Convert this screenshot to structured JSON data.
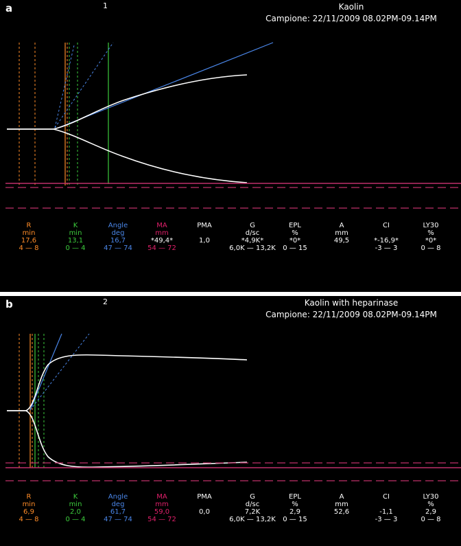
{
  "colors": {
    "R": "#ff8c28",
    "K": "#3ccc3c",
    "Angle": "#4a86e8",
    "MA": "#e0206a",
    "white": "#ffffff",
    "baseline": "#c0306a"
  },
  "panels": [
    {
      "letter": "a",
      "number": "1",
      "title": "Kaolin",
      "sample": "Campione: 22/11/2009 08.02PM-09.14PM",
      "params": [
        {
          "name": "R",
          "unit": "min",
          "value": "17,6",
          "range": "4 — 8",
          "color": "R",
          "value_color": "R"
        },
        {
          "name": "K",
          "unit": "min",
          "value": "13,1",
          "range": "0 — 4",
          "color": "K",
          "value_color": "K"
        },
        {
          "name": "Angle",
          "unit": "deg",
          "value": "16,7",
          "range": "47 — 74",
          "color": "Angle",
          "value_color": "Angle"
        },
        {
          "name": "MA",
          "unit": "mm",
          "value": "*49,4*",
          "range": "54 — 72",
          "color": "MA",
          "value_color": "white"
        },
        {
          "name": "PMA",
          "unit": "",
          "value": "1,0",
          "range": "",
          "color": "white",
          "value_color": "white"
        },
        {
          "name": "G",
          "unit": "d/sc",
          "value": "*4,9K*",
          "range": "6,0K — 13,2K",
          "color": "white",
          "value_color": "white"
        },
        {
          "name": "EPL",
          "unit": "%",
          "value": "*0*",
          "range": "0 — 15",
          "color": "white",
          "value_color": "white"
        },
        {
          "name": "A",
          "unit": "mm",
          "value": "49,5",
          "range": "",
          "color": "white",
          "value_color": "white"
        },
        {
          "name": "CI",
          "unit": "",
          "value": "*-16,9*",
          "range": "-3 — 3",
          "color": "white",
          "value_color": "white"
        },
        {
          "name": "LY30",
          "unit": "%",
          "value": "*0*",
          "range": "0 — 8",
          "color": "white",
          "value_color": "white"
        }
      ]
    },
    {
      "letter": "b",
      "number": "2",
      "title": "Kaolin with heparinase",
      "sample": "Campione: 22/11/2009 08.02PM-09.14PM",
      "params": [
        {
          "name": "R",
          "unit": "min",
          "value": "6,9",
          "range": "4 — 8",
          "color": "R",
          "value_color": "R"
        },
        {
          "name": "K",
          "unit": "min",
          "value": "2,0",
          "range": "0 — 4",
          "color": "K",
          "value_color": "K"
        },
        {
          "name": "Angle",
          "unit": "deg",
          "value": "61,7",
          "range": "47 — 74",
          "color": "Angle",
          "value_color": "Angle"
        },
        {
          "name": "MA",
          "unit": "mm",
          "value": "59,0",
          "range": "54 — 72",
          "color": "MA",
          "value_color": "MA"
        },
        {
          "name": "PMA",
          "unit": "",
          "value": "0,0",
          "range": "",
          "color": "white",
          "value_color": "white"
        },
        {
          "name": "G",
          "unit": "d/sc",
          "value": "7,2K",
          "range": "6,0K — 13,2K",
          "color": "white",
          "value_color": "white"
        },
        {
          "name": "EPL",
          "unit": "%",
          "value": "2,9",
          "range": "0 — 15",
          "color": "white",
          "value_color": "white"
        },
        {
          "name": "A",
          "unit": "mm",
          "value": "52,6",
          "range": "",
          "color": "white",
          "value_color": "white"
        },
        {
          "name": "CI",
          "unit": "",
          "value": "-1,1",
          "range": "-3 — 3",
          "color": "white",
          "value_color": "white"
        },
        {
          "name": "LY30",
          "unit": "%",
          "value": "2,9",
          "range": "0 — 8",
          "color": "white",
          "value_color": "white"
        }
      ]
    }
  ],
  "chart_data": [
    {
      "type": "line",
      "panel": "a",
      "title": "Kaolin",
      "series": [
        {
          "name": "R",
          "values": [
            17.6
          ]
        },
        {
          "name": "K",
          "values": [
            13.1
          ]
        },
        {
          "name": "Angle",
          "values": [
            16.7
          ]
        },
        {
          "name": "MA",
          "values": [
            49.4
          ]
        }
      ]
    },
    {
      "type": "line",
      "panel": "b",
      "title": "Kaolin with heparinase",
      "series": [
        {
          "name": "R",
          "values": [
            6.9
          ]
        },
        {
          "name": "K",
          "values": [
            2.0
          ]
        },
        {
          "name": "Angle",
          "values": [
            61.7
          ]
        },
        {
          "name": "MA",
          "values": [
            59.0
          ]
        }
      ]
    }
  ]
}
